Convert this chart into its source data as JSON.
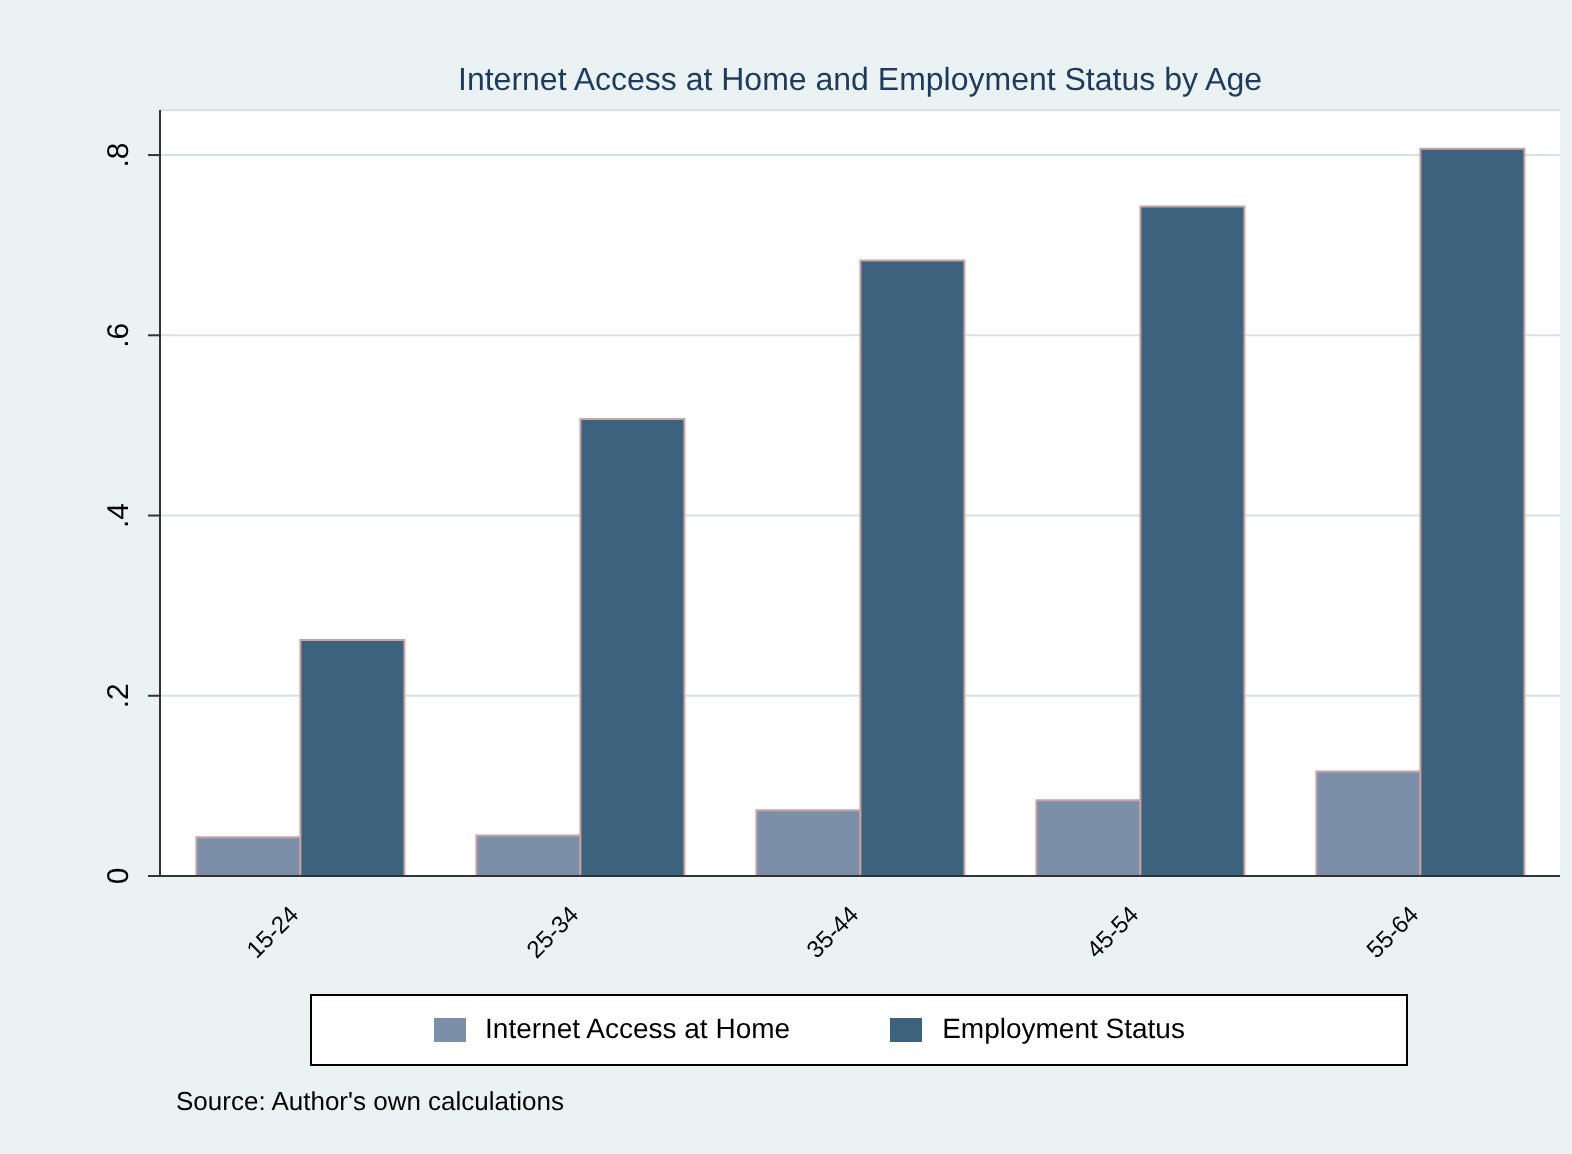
{
  "chart_data": {
    "type": "bar",
    "title": "Internet Access at Home and Employment Status by Age",
    "categories": [
      "15-24",
      "25-34",
      "35-44",
      "45-54",
      "55-64"
    ],
    "series": [
      {
        "name": "Internet Access at Home",
        "color": "#7b90a8",
        "values": [
          0.043,
          0.045,
          0.073,
          0.084,
          0.116
        ]
      },
      {
        "name": "Employment Status",
        "color": "#3d627d",
        "values": [
          0.262,
          0.507,
          0.683,
          0.743,
          0.807
        ]
      }
    ],
    "ylim": [
      0,
      0.85
    ],
    "yticks": [
      {
        "value": 0,
        "label": "0"
      },
      {
        "value": 0.2,
        "label": ".2"
      },
      {
        "value": 0.4,
        "label": ".4"
      },
      {
        "value": 0.6,
        "label": ".6"
      },
      {
        "value": 0.8,
        "label": ".8"
      }
    ],
    "grid": "y",
    "legend": "bottom",
    "annotations": [
      "Source: Author's own calculations"
    ]
  }
}
